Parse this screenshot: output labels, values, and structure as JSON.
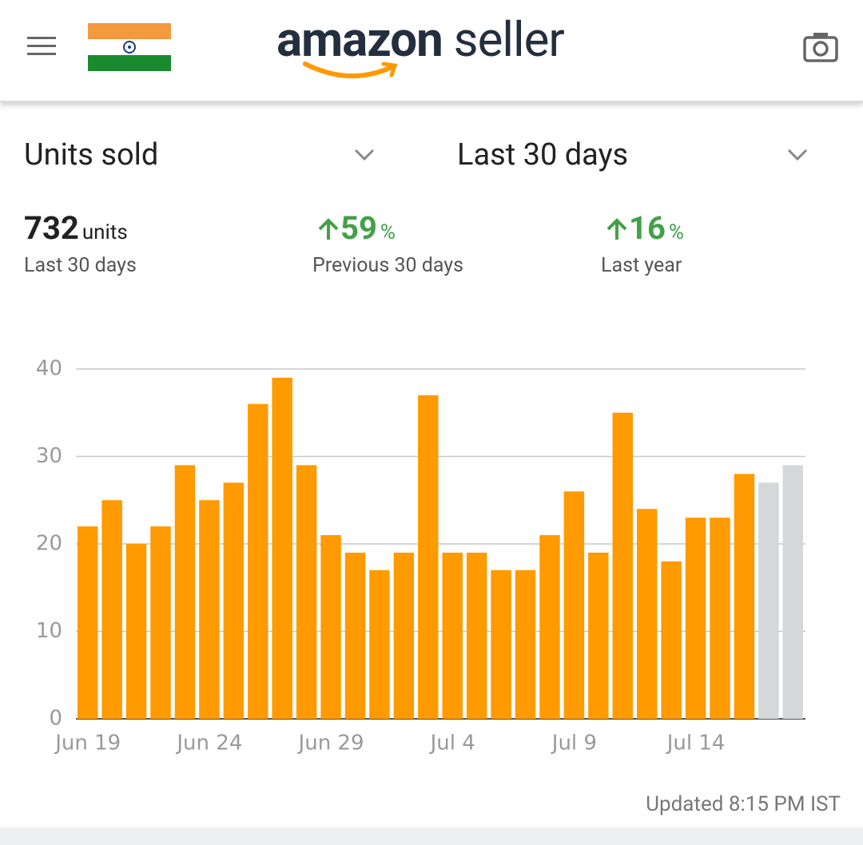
{
  "header": {
    "logo": "amazon",
    "logo_suffix": "seller"
  },
  "filters": {
    "metric": "Units sold",
    "period": "Last 30 days"
  },
  "stats": [
    {
      "value": 732,
      "unit": "units",
      "label": "Last 30 days"
    },
    {
      "value": 59,
      "unit": "%",
      "label": "Previous 30 days"
    },
    {
      "value": 16,
      "unit": "%",
      "label": "Last year"
    }
  ],
  "chart_data": {
    "type": "bar",
    "categories": [
      "Jun 19",
      null,
      null,
      null,
      null,
      "Jun 24",
      null,
      null,
      null,
      null,
      "Jun 29",
      null,
      null,
      null,
      null,
      "Jul 4",
      null,
      null,
      null,
      null,
      "Jul 9",
      null,
      null,
      null,
      null,
      "Jul 14",
      null,
      null,
      null,
      null
    ],
    "values": [
      22,
      25,
      20,
      22,
      29,
      25,
      27,
      36,
      39,
      29,
      21,
      19,
      17,
      19,
      37,
      19,
      19,
      17,
      17,
      21,
      26,
      19,
      35,
      24,
      18,
      23,
      23,
      28,
      27,
      29
    ],
    "colors": [
      "#ff9a00",
      "#ff9a00",
      "#ff9a00",
      "#ff9a00",
      "#ff9a00",
      "#ff9a00",
      "#ff9a00",
      "#ff9a00",
      "#ff9a00",
      "#ff9a00",
      "#ff9a00",
      "#ff9a00",
      "#ff9a00",
      "#ff9a00",
      "#ff9a00",
      "#ff9a00",
      "#ff9a00",
      "#ff9a00",
      "#ff9a00",
      "#ff9a00",
      "#ff9a00",
      "#ff9a00",
      "#ff9a00",
      "#ff9a00",
      "#ff9a00",
      "#ff9a00",
      "#ff9a00",
      "#ff9a00",
      "#d6d7d9",
      "#d6d7d9"
    ],
    "ylim": [
      0,
      40
    ],
    "yticks": [
      0,
      10,
      20,
      30,
      40
    ],
    "grid": true
  },
  "footer": {
    "updated": "Updated 8:15 PM IST"
  }
}
